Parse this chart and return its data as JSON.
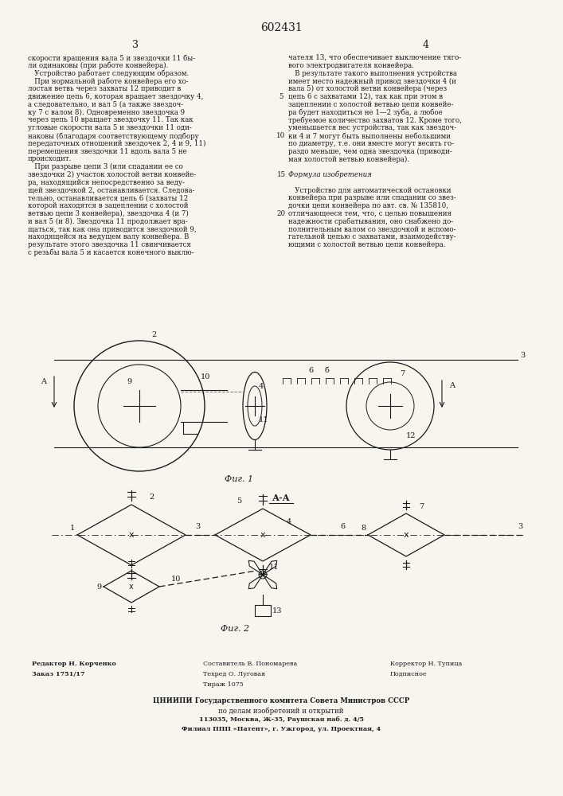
{
  "page_number": "602431",
  "col3_number": "3",
  "col4_number": "4",
  "text_col3": [
    "скорости вращения вала 5 и звездочки 11 бы-",
    "ли одинаковы (при работе конвейера).",
    "   Устройство работает следующим образом.",
    "   При нормальной работе конвейера его хо-",
    "лостая ветвь через захваты 12 приводит в",
    "движение цепь 6, которая вращает звездочку 4,",
    "а следовательно, и вал 5 (а также звездоч-",
    "ку 7 с валом 8). Одновременно звездочка 9",
    "через цепь 10 вращает звездочку 11. Так как",
    "угловые скорости вала 5 и звездочки 11 оди-",
    "наковы (благодаря соответствующему подбору",
    "передаточных отношений звездочек 2, 4 и 9, 11)",
    "перемещения звездочки 11 вдоль вала 5 не",
    "происходит.",
    "   При разрыве цепи 3 (или спадании ее со",
    "звездочки 2) участок холостой ветви конвейе-",
    "ра, находящийся непосредственно за веду-",
    "щей звездочкой 2, останавливается. Следова-",
    "тельно, останавливается цепь 6 (захваты 12",
    "которой находятся в зацеплении с холостой",
    "ветвью цепи 3 конвейера), звездочка 4 (и 7)",
    "и вал 5 (и 8). Звездочка 11 продолжает вра-",
    "щаться, так как она приводится звездочкой 9,",
    "находящейся на ведущем валу конвейера. В",
    "результате этого звездочка 11 свинчивается",
    "с резьбы вала 5 и касается конечного выклю-"
  ],
  "text_col4": [
    "чателя 13, что обеспечивает выключение тяго-",
    "вого электродвигателя конвейера.",
    "   В результате такого выполнения устройства",
    "имеет место надежный привод звездочки 4 (и",
    "вала 5) от холостой ветви конвейера (через",
    "цепь 6 с захватами 12), так как при этом в",
    "зацеплении с холостой ветвью цепи конвейе-",
    "ра будет находиться не 1—2 зуба, а любое",
    "требуемое количество захватов 12. Кроме того,",
    "уменьшается вес устройства, так как звездоч-",
    "ки 4 и 7 могут быть выполнены небольшими",
    "по диаметру, т.е. они вместе могут весить го-",
    "раздо меньше, чем одна звездочка (приводи-",
    "мая холостой ветвью конвейера).",
    "",
    "Формула изобретения",
    "",
    "   Устройство для автоматической остановки",
    "конвейера при разрыве или спадании со звез-",
    "дочки цепи конвейера по авт. св. № 135810,",
    "отличающееся тем, что, с целью повышения",
    "надежности срабатывания, оно снабжено до-",
    "полнительным валом со звездочкой и вспомо-",
    "гательной цепью с захватами, взаимодейству-",
    "ющими с холостой ветвью цепи конвейера."
  ],
  "fig1_caption": "Фиг. 1",
  "fig2_caption": "Фиг. 2",
  "section_label": "А-А",
  "footer_left": [
    "Редактор Н. Корченко",
    "Заказ 1751/17"
  ],
  "footer_center": [
    "Составитель В. Пономарева",
    "Техред О. Луговая",
    "Тираж 1075"
  ],
  "footer_right": [
    "Корректор Н. Тупица",
    "Подписное"
  ],
  "footer_org": "ЦНИИПИ Государственного комитета Совета Министров СССР",
  "footer_org2": "по делам изобретений и открытий",
  "footer_addr1": "113035, Москва, Ж-35, Раушская наб. д. 4/5",
  "footer_addr2": "Филиал ППП «Патент», г. Ужгород, ул. Проектная, 4",
  "bg_color": "#f8f5ee",
  "text_color": "#1a1a1a",
  "line_color": "#1a1a1a"
}
